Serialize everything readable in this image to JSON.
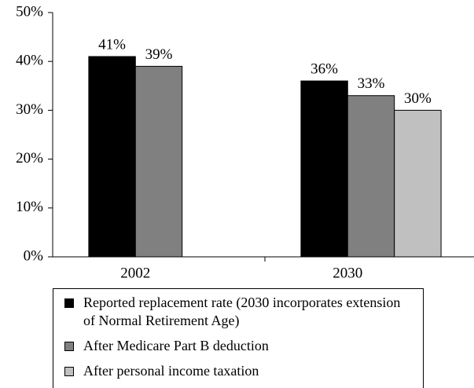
{
  "chart_data": {
    "type": "bar",
    "categories": [
      "2002",
      "2030"
    ],
    "series": [
      {
        "name": "Reported replacement rate (2030 incorporates extension of Normal Retirement Age)",
        "color": "#000000",
        "values": [
          41,
          36
        ],
        "value_labels": [
          "41%",
          "36%"
        ]
      },
      {
        "name": "After Medicare Part B deduction",
        "color": "#808080",
        "values": [
          39,
          33
        ],
        "value_labels": [
          "39%",
          "33%"
        ]
      },
      {
        "name": "After personal income taxation",
        "color": "#c0c0c0",
        "values": [
          null,
          30
        ],
        "value_labels": [
          null,
          "30%"
        ]
      }
    ],
    "ylim": [
      0,
      50
    ],
    "yticks": [
      {
        "value": 0,
        "label": "0%"
      },
      {
        "value": 10,
        "label": "10%"
      },
      {
        "value": 20,
        "label": "20%"
      },
      {
        "value": 30,
        "label": "30%"
      },
      {
        "value": 40,
        "label": "40%"
      },
      {
        "value": 50,
        "label": "50%"
      }
    ],
    "grid": false,
    "legend": "bottom"
  }
}
